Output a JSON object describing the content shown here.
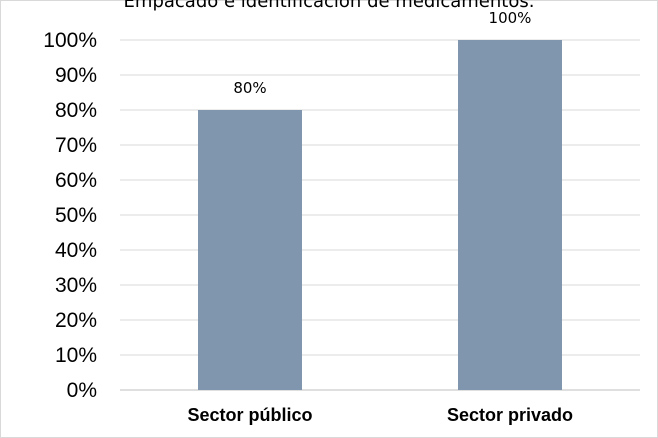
{
  "chart_data": {
    "type": "bar",
    "title": "Empacado e identificación de medicamentos.",
    "categories": [
      "Sector público",
      "Sector privado"
    ],
    "values": [
      80,
      100
    ],
    "data_labels": [
      "80%",
      "100%"
    ],
    "xlabel": "",
    "ylabel": "",
    "ylim": [
      0,
      100
    ],
    "yticks": [
      "0%",
      "10%",
      "20%",
      "30%",
      "40%",
      "50%",
      "60%",
      "70%",
      "80%",
      "90%",
      "100%"
    ],
    "grid": true,
    "legend": "none",
    "colors": {
      "bar": "#8096ae",
      "grid": "#d9d9d9",
      "axis": "#bfbfbf"
    }
  }
}
